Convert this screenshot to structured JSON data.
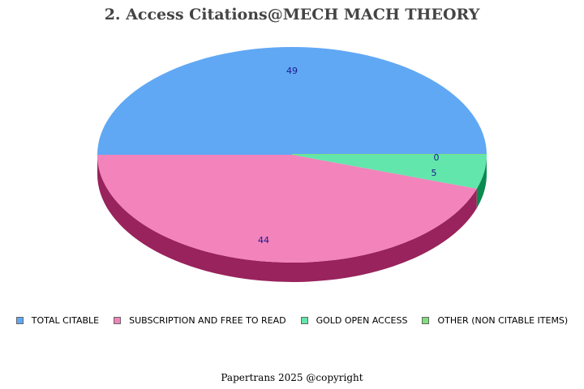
{
  "chart_data": {
    "type": "pie",
    "title": "2. Access Citations@MECH MACH THEORY",
    "three_d": true,
    "legend_position": "bottom",
    "slices": [
      {
        "label": "TOTAL CITABLE",
        "value": 49,
        "color": "#60a8f4",
        "side": "#3a6fa8"
      },
      {
        "label": "SUBSCRIPTION AND FREE TO READ",
        "value": 44,
        "color": "#f283bb",
        "side": "#99235c"
      },
      {
        "label": "GOLD OPEN ACCESS",
        "value": 5,
        "color": "#62e6ac",
        "side": "#0b8a50"
      },
      {
        "label": "OTHER (NON CITABLE ITEMS)",
        "value": 0,
        "color": "#7fe07a",
        "side": "#3a9a36"
      }
    ]
  },
  "footer": "Papertrans 2025 @copyright"
}
